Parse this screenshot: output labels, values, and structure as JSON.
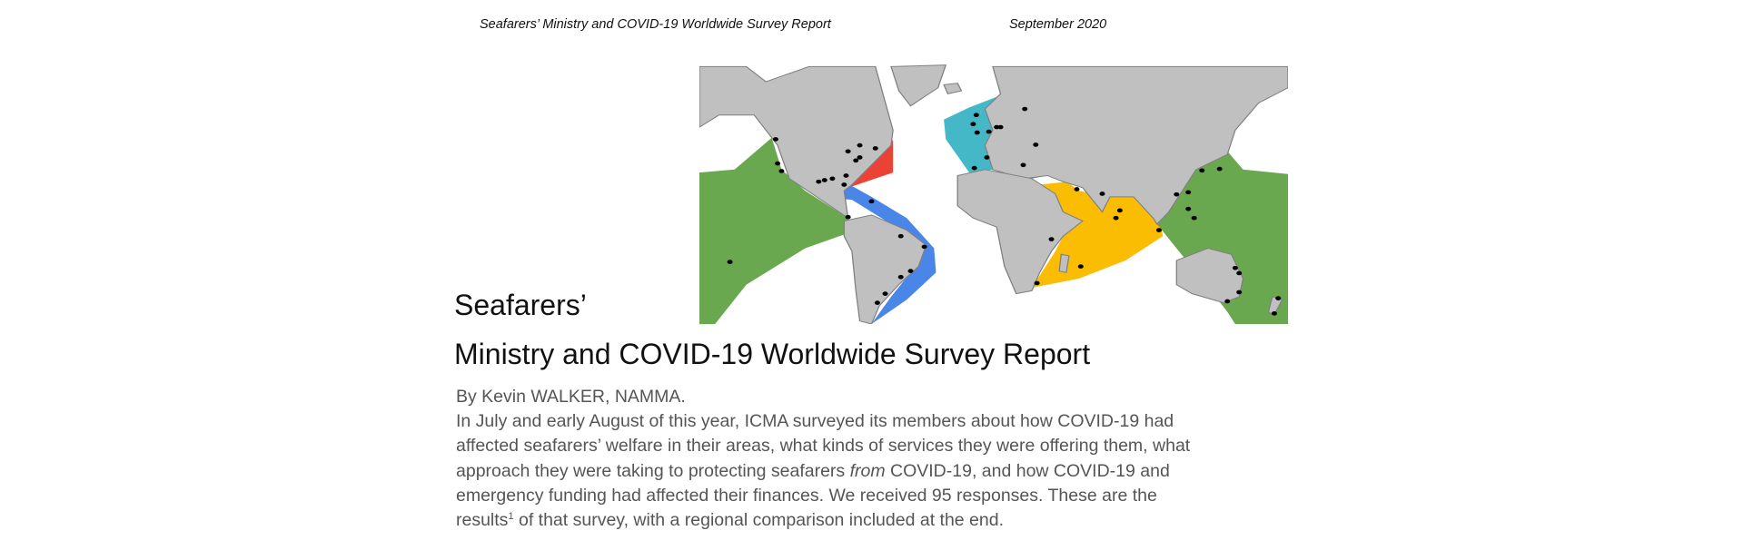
{
  "header": {
    "running_title": "Seafarers’ Ministry and COVID-19 Worldwide Survey Report",
    "date": "September 2020"
  },
  "map": {
    "colors": {
      "land": "#c0c0c0",
      "border": "#808080",
      "pacific": "#6aa84f",
      "north_atlantic": "#ea4335",
      "south_atlantic": "#4a86e8",
      "europe": "#45b8c8",
      "indian_ocean": "#fbbc04",
      "dot": "#000000"
    }
  },
  "article": {
    "title_line1": "Seafarers’",
    "title_line2": "Ministry and COVID-19 Worldwide Survey Report",
    "byline": "By Kevin WALKER, NAMMA.",
    "lines": [
      "In July and early August of this year, ICMA surveyed its members about how COVID-19 had",
      "affected seafarers’ welfare in their areas, what kinds of services they were offering them, what",
      "approach they were taking to protecting seafarers ",
      "from",
      " COVID-19, and how COVID-19 and",
      "emergency funding had affected their finances.  We received 95 responses.  These are the",
      "results",
      "1",
      " of that survey, with a regional comparison included at the end."
    ]
  }
}
